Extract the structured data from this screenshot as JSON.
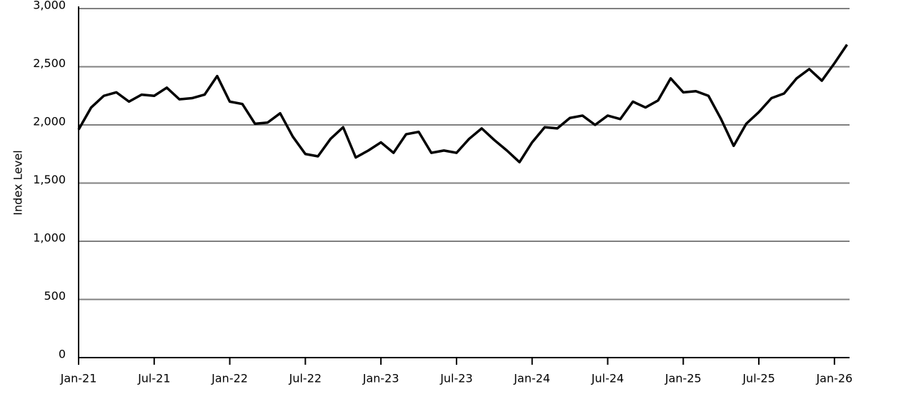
{
  "chart_data": {
    "type": "line",
    "y_label": "Index Level",
    "x": [
      "2021-01",
      "2021-02",
      "2021-03",
      "2021-04",
      "2021-05",
      "2021-06",
      "2021-07",
      "2021-08",
      "2021-09",
      "2021-10",
      "2021-11",
      "2021-12",
      "2022-01",
      "2022-02",
      "2022-03",
      "2022-04",
      "2022-05",
      "2022-06",
      "2022-07",
      "2022-08",
      "2022-09",
      "2022-10",
      "2022-11",
      "2022-12",
      "2023-01",
      "2023-02",
      "2023-03",
      "2023-04",
      "2023-05",
      "2023-06",
      "2023-07",
      "2023-08",
      "2023-09",
      "2023-10",
      "2023-11",
      "2023-12",
      "2024-01",
      "2024-02",
      "2024-03",
      "2024-04",
      "2024-05",
      "2024-06",
      "2024-07",
      "2024-08",
      "2024-09",
      "2024-10",
      "2024-11",
      "2024-12",
      "2025-01",
      "2025-02",
      "2025-03",
      "2025-04",
      "2025-05",
      "2025-06",
      "2025-07",
      "2025-08",
      "2025-09",
      "2025-10",
      "2025-11",
      "2025-12",
      "2026-01",
      "2026-02"
    ],
    "series": [
      {
        "name": "Index",
        "color": "#000000",
        "values": [
          1960,
          2150,
          2250,
          2280,
          2200,
          2260,
          2250,
          2320,
          2220,
          2230,
          2260,
          2420,
          2200,
          2180,
          2010,
          2020,
          2100,
          1900,
          1750,
          1730,
          1880,
          1980,
          1720,
          1780,
          1850,
          1760,
          1920,
          1940,
          1760,
          1780,
          1760,
          1880,
          1970,
          1870,
          1780,
          1680,
          1850,
          1980,
          1970,
          2060,
          2080,
          2000,
          2080,
          2050,
          2200,
          2150,
          2210,
          2400,
          2280,
          2290,
          2250,
          2050,
          1820,
          2010,
          2110,
          2230,
          2270,
          2400,
          2480,
          2380,
          2530,
          2690
        ]
      }
    ],
    "xlim": [
      "2021-01",
      "2026-02"
    ],
    "xticks": [
      {
        "value": "2021-01",
        "label": "Jan-21"
      },
      {
        "value": "2021-07",
        "label": "Jul-21"
      },
      {
        "value": "2022-01",
        "label": "Jan-22"
      },
      {
        "value": "2022-07",
        "label": "Jul-22"
      },
      {
        "value": "2023-01",
        "label": "Jan-23"
      },
      {
        "value": "2023-07",
        "label": "Jul-23"
      },
      {
        "value": "2024-01",
        "label": "Jan-24"
      },
      {
        "value": "2024-07",
        "label": "Jul-24"
      },
      {
        "value": "2025-01",
        "label": "Jan-25"
      },
      {
        "value": "2025-07",
        "label": "Jul-25"
      },
      {
        "value": "2026-01",
        "label": "Jan-26"
      }
    ],
    "ylim": [
      0,
      3000
    ],
    "yticks": [
      0,
      500,
      {
        "value": 1000,
        "label": "1,000"
      },
      {
        "value": 1500,
        "label": "1,500"
      },
      {
        "value": 2000,
        "label": "2,000"
      },
      {
        "value": 2500,
        "label": "2,500"
      },
      {
        "value": 3000,
        "label": "3,000"
      }
    ],
    "grid": true
  }
}
